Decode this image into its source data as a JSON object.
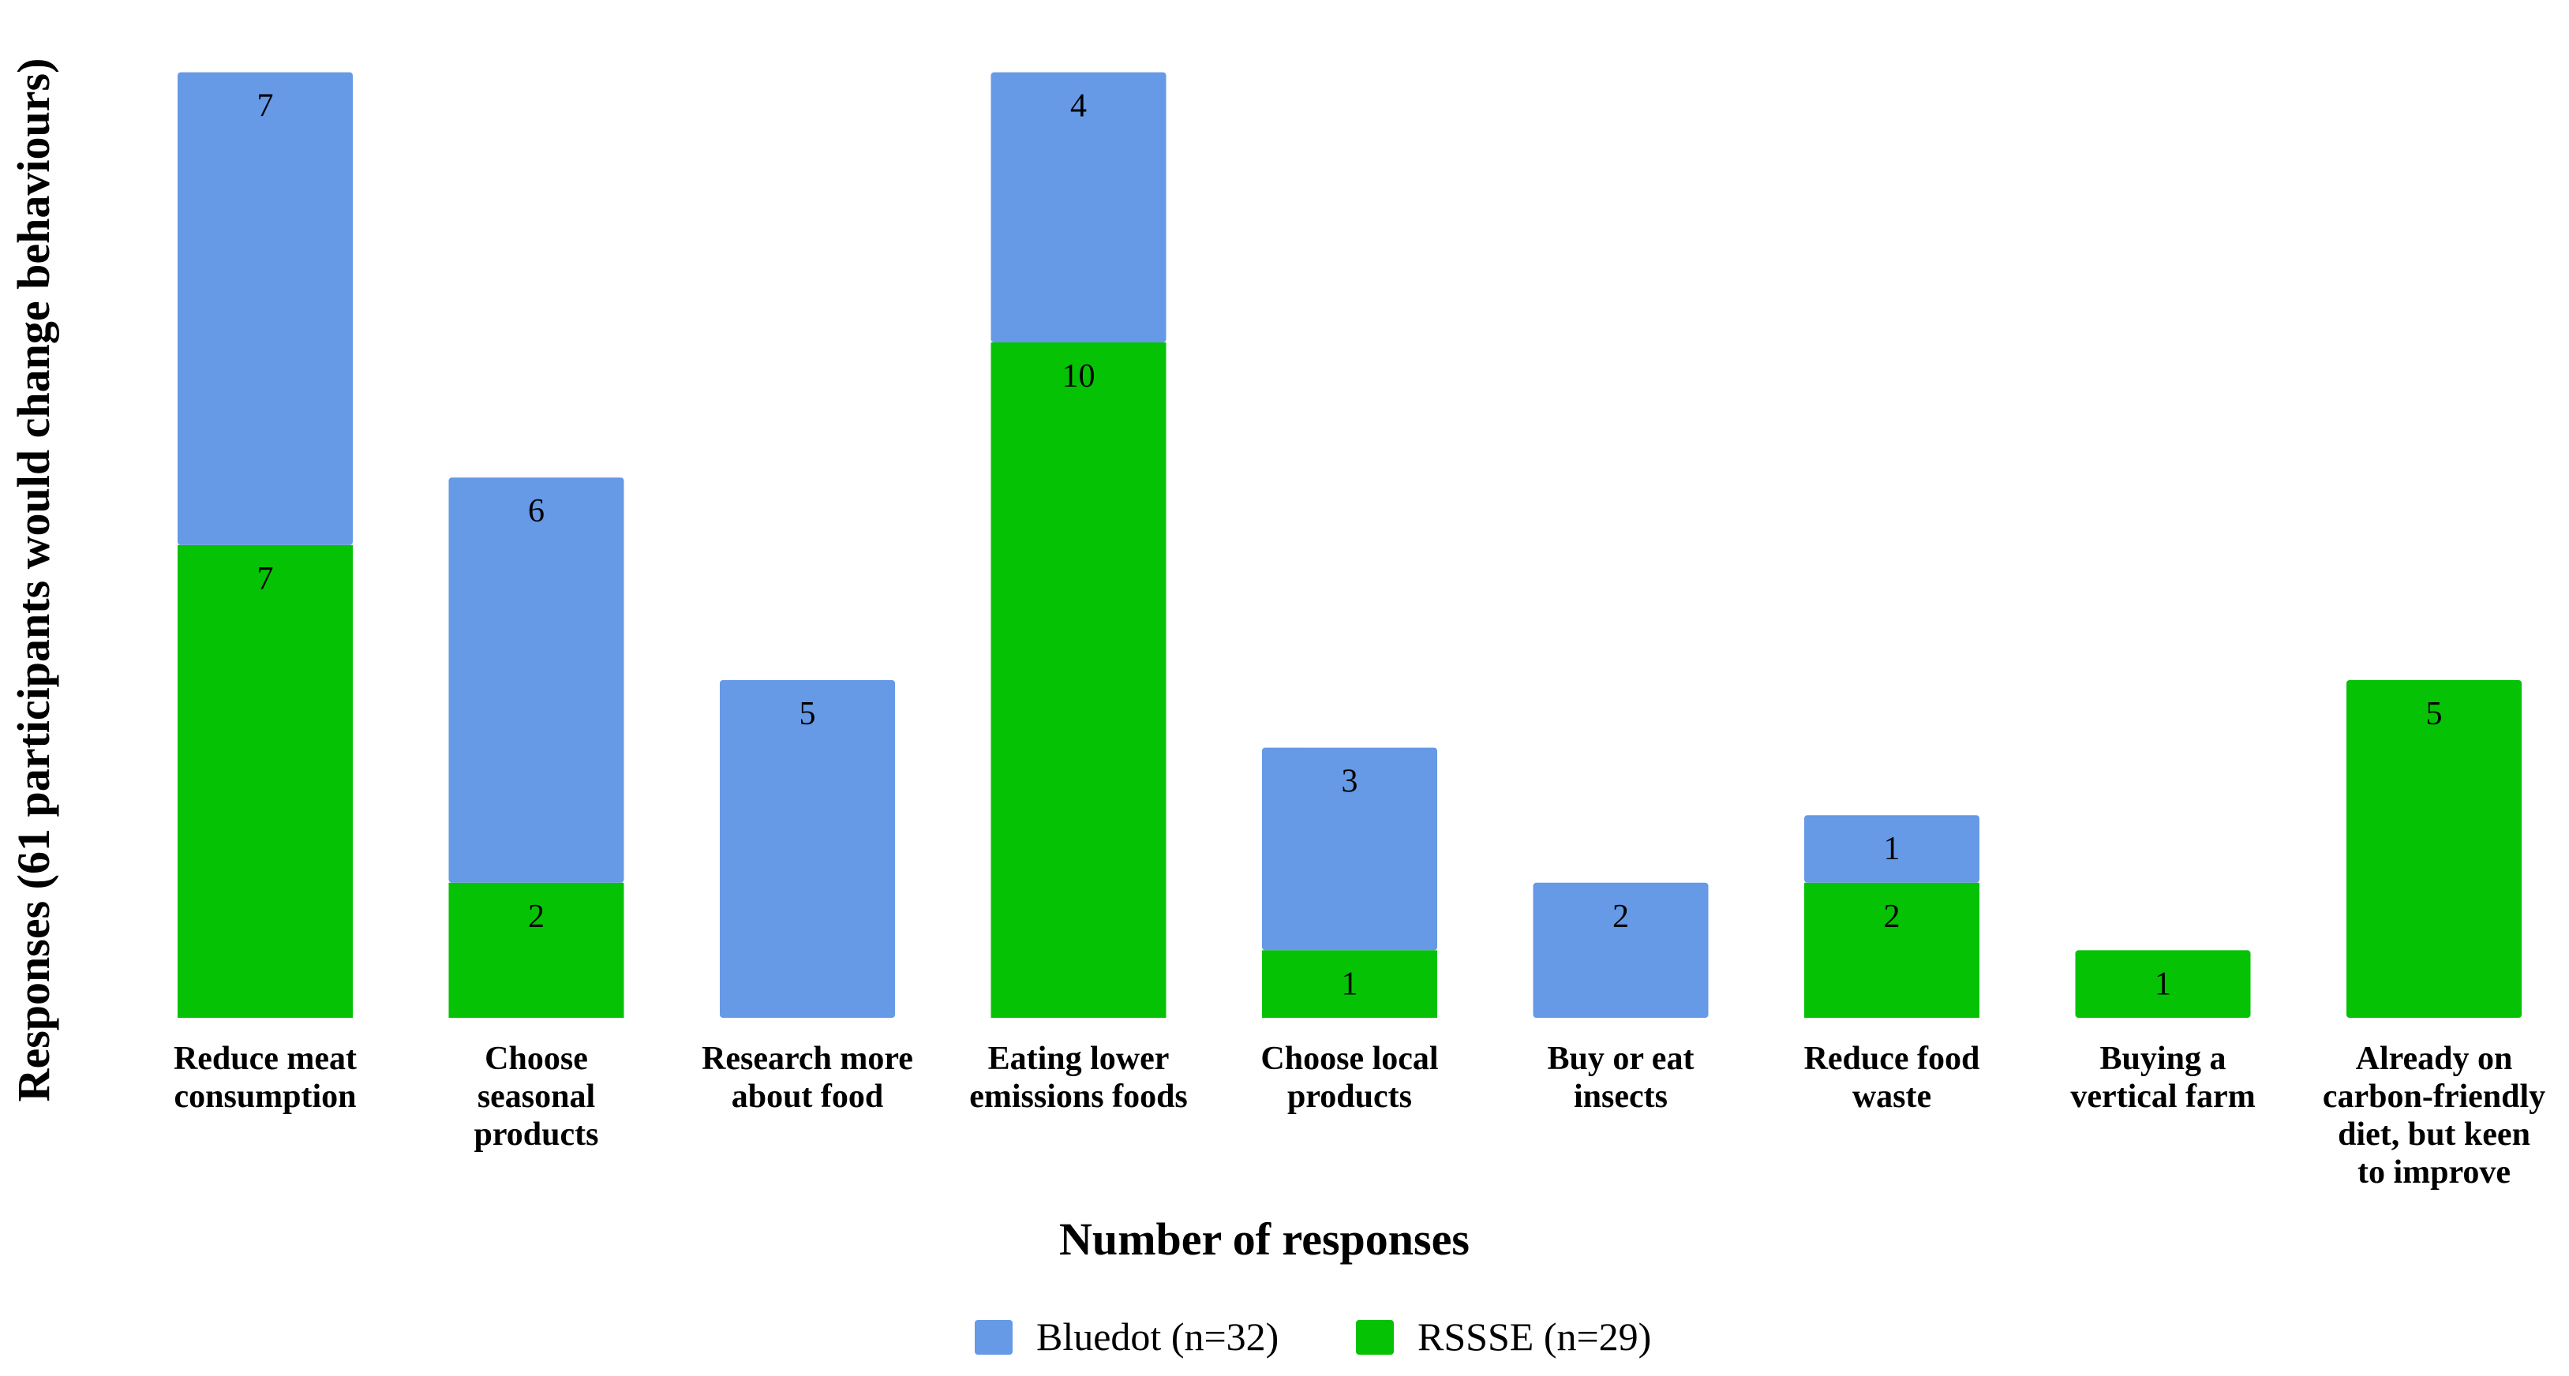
{
  "chart_data": {
    "type": "bar",
    "stacked": true,
    "title": "",
    "xlabel": "Number of responses",
    "ylabel": "Responses (61 participants would change behaviours)",
    "ylim": [
      0,
      14
    ],
    "grid": false,
    "legend_position": "bottom-center",
    "categories": [
      [
        "Reduce meat",
        "consumption"
      ],
      [
        "Choose",
        "seasonal",
        "products"
      ],
      [
        "Research more",
        "about food"
      ],
      [
        "Eating lower",
        "emissions foods"
      ],
      [
        "Choose local",
        "products"
      ],
      [
        "Buy or eat",
        "insects"
      ],
      [
        "Reduce food",
        "waste"
      ],
      [
        "Buying a",
        "vertical farm"
      ],
      [
        "Already on",
        "carbon-friendly",
        "diet, but keen",
        "to improve"
      ]
    ],
    "series": [
      {
        "name": "RSSSE (n=29)",
        "color": "#05c205",
        "values": [
          7,
          2,
          0,
          10,
          1,
          0,
          2,
          1,
          5
        ]
      },
      {
        "name": "Bluedot (n=32)",
        "color": "#6699e6",
        "values": [
          7,
          6,
          5,
          4,
          3,
          2,
          1,
          0,
          0
        ]
      }
    ],
    "legend_order": [
      1,
      0
    ]
  }
}
